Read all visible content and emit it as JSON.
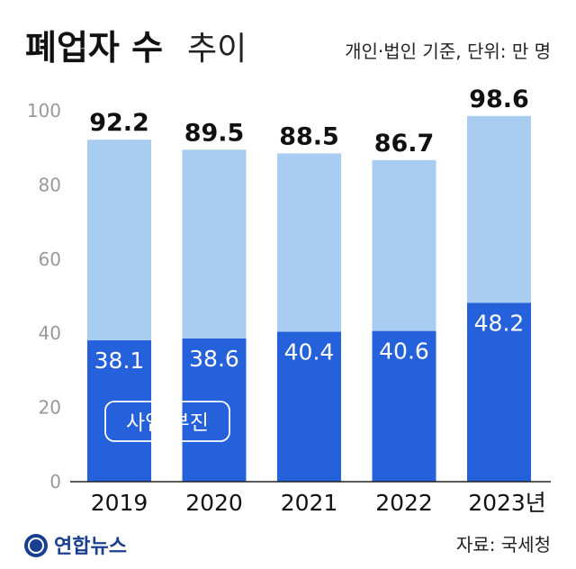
{
  "chart_data": {
    "type": "bar",
    "title": "폐업자 수",
    "title_suffix": "추이",
    "note": "개인·법인 기준, 단위: 만 명",
    "categories": [
      "2019",
      "2020",
      "2021",
      "2022",
      "2023년"
    ],
    "totals": [
      92.2,
      89.5,
      88.5,
      86.7,
      98.6
    ],
    "series": [
      {
        "name": "사업 부진",
        "values": [
          38.1,
          38.6,
          40.4,
          40.6,
          48.2
        ]
      }
    ],
    "total_labels": [
      "92.2",
      "89.5",
      "88.5",
      "86.7",
      "98.6"
    ],
    "series_labels": [
      "38.1",
      "38.6",
      "40.4",
      "40.6",
      "48.2"
    ],
    "ylim": [
      0,
      100
    ],
    "yticks": [
      0,
      20,
      40,
      60,
      80,
      100
    ],
    "ytick_labels": [
      "0",
      "20",
      "40",
      "60",
      "80",
      "100"
    ],
    "legend_placement": "inside-bottom-left",
    "grid": false,
    "colors": {
      "total_bar": "#a8cdf0",
      "series_bar": "#2661dc",
      "axis": "#222222"
    }
  },
  "footer": {
    "source": "자료: 국세청",
    "logo_text": "연합뉴스"
  }
}
